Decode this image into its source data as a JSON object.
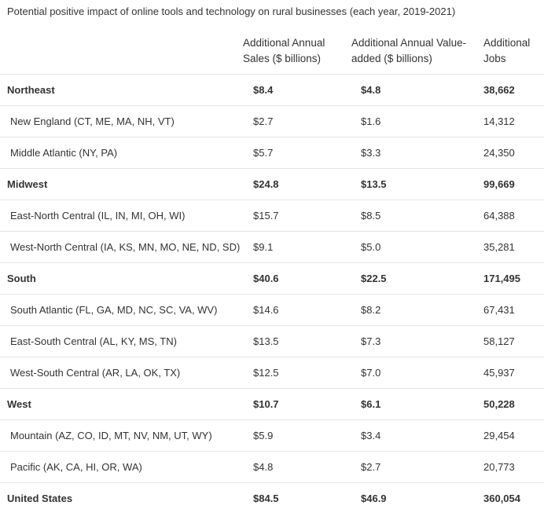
{
  "title": "Potential positive impact of online tools and technology on rural businesses (each year, 2019-2021)",
  "table": {
    "headers": [
      "Additional Annual Sales ($ billions)",
      "Additional Annual Value-added ($ billions)",
      "Additional Jobs"
    ],
    "rows": [
      [
        "Northeast",
        "$8.4",
        "$4.8",
        "38,662"
      ],
      [
        "New England (CT, ME, MA, NH, VT)",
        "$2.7",
        "$1.6",
        "14,312"
      ],
      [
        "Middle Atlantic (NY, PA)",
        "$5.7",
        "$3.3",
        "24,350"
      ],
      [
        "Midwest",
        "$24.8",
        "$13.5",
        "99,669"
      ],
      [
        "East-North Central (IL, IN, MI, OH, WI)",
        "$15.7",
        "$8.5",
        "64,388"
      ],
      [
        "West-North Central (IA, KS, MN, MO, NE, ND, SD)",
        "$9.1",
        "$5.0",
        "35,281"
      ],
      [
        "South",
        "$40.6",
        "$22.5",
        "171,495"
      ],
      [
        "South Atlantic (FL, GA, MD, NC, SC, VA, WV)",
        "$14.6",
        "$8.2",
        "67,431"
      ],
      [
        "East-South Central (AL, KY, MS, TN)",
        "$13.5",
        "$7.3",
        "58,127"
      ],
      [
        "West-South Central (AR, LA, OK, TX)",
        "$12.5",
        "$7.0",
        "45,937"
      ],
      [
        "West",
        "$10.7",
        "$6.1",
        "50,228"
      ],
      [
        "Mountain (AZ, CO, ID, MT, NV, NM, UT, WY)",
        "$5.9",
        "$3.4",
        "29,454"
      ],
      [
        "Pacific (AK, CA, HI, OR, WA)",
        "$4.8",
        "$2.7",
        "20,773"
      ],
      [
        "United States",
        "$84.5",
        "$46.9",
        "360,054"
      ]
    ]
  }
}
